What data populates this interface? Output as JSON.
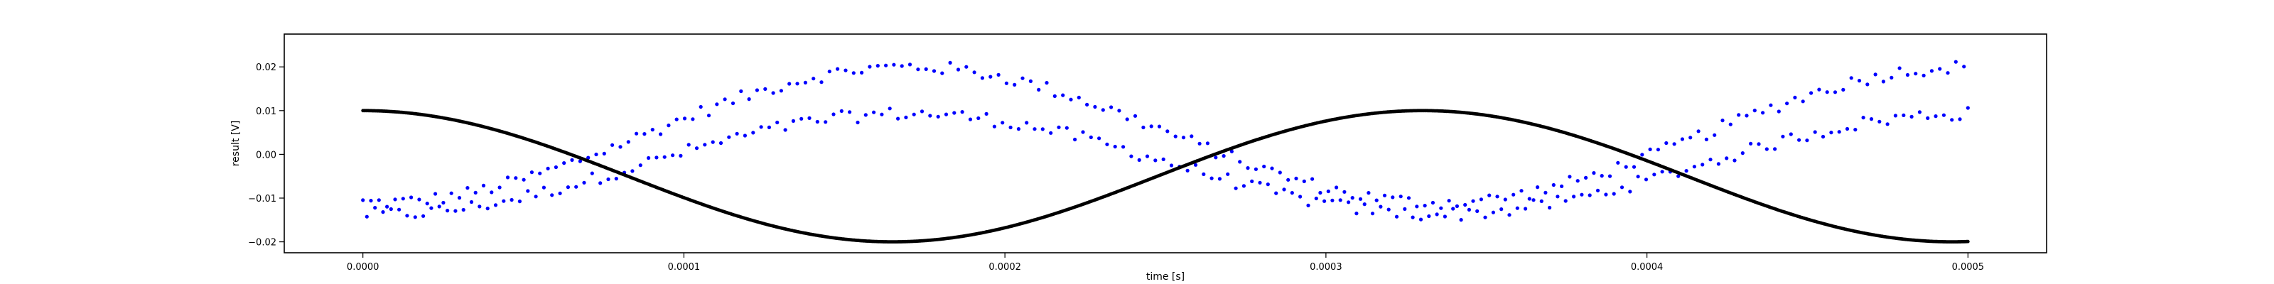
{
  "chart_data": {
    "type": "scatter",
    "title": "",
    "xlabel": "time [s]",
    "ylabel": "result [V]",
    "xlim": [
      -2.45e-05,
      0.0005245
    ],
    "ylim": [
      -0.0225,
      0.0275
    ],
    "xticks": [
      0.0,
      0.0001,
      0.0002,
      0.0003,
      0.0004,
      0.0005
    ],
    "xtick_labels": [
      "0.0000",
      "0.0001",
      "0.0002",
      "0.0003",
      "0.0004",
      "0.0005"
    ],
    "yticks": [
      -0.02,
      -0.01,
      0.0,
      0.01,
      0.02
    ],
    "ytick_labels": [
      "−0.02",
      "−0.01",
      "0.00",
      "0.01",
      "0.02"
    ],
    "grid": false,
    "legend": "none",
    "series": [
      {
        "color": "#0000ff",
        "marker": "dot",
        "x_start": 0.0,
        "x_end": 0.0005,
        "point_count": 400,
        "upper_branch": {
          "offset": 0.0045,
          "amplitude": 0.0155,
          "period": 0.00033,
          "phase_time": 0.00017
        },
        "lower_branch": {
          "offset": -0.0022,
          "amplitude": 0.0115,
          "period": 0.00033,
          "phase_time": 0.00017
        },
        "noise": 0.0015
      },
      {
        "color": "#000000",
        "marker": "dot",
        "x_start": 0.0,
        "x_end": 0.0005,
        "point_count": 1500,
        "offset": -0.005,
        "amplitude": 0.015,
        "period": 0.00033,
        "phase_time": 0.0
      }
    ]
  }
}
